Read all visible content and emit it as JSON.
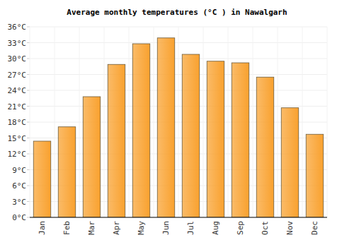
{
  "chart_data": {
    "type": "bar",
    "title": "Average monthly temperatures (°C ) in Nawalgarh",
    "categories": [
      "Jan",
      "Feb",
      "Mar",
      "Apr",
      "May",
      "Jun",
      "Jul",
      "Aug",
      "Sep",
      "Oct",
      "Nov",
      "Dec"
    ],
    "values": [
      14.4,
      17.1,
      22.8,
      28.9,
      32.8,
      33.9,
      30.8,
      29.5,
      29.2,
      26.5,
      20.7,
      15.7
    ],
    "color": "#f9a12e",
    "ylim": [
      0,
      36
    ],
    "yticks": [
      {
        "value": 0,
        "label": "0°C"
      },
      {
        "value": 3,
        "label": "3°C"
      },
      {
        "value": 6,
        "label": "6°C"
      },
      {
        "value": 9,
        "label": "9°C"
      },
      {
        "value": 12,
        "label": "12°C"
      },
      {
        "value": 15,
        "label": "15°C"
      },
      {
        "value": 18,
        "label": "18°C"
      },
      {
        "value": 21,
        "label": "21°C"
      },
      {
        "value": 24,
        "label": "24°C"
      },
      {
        "value": 27,
        "label": "27°C"
      },
      {
        "value": 30,
        "label": "30°C"
      },
      {
        "value": 33,
        "label": "33°C"
      },
      {
        "value": 36,
        "label": "36°C"
      }
    ],
    "grid": true
  }
}
